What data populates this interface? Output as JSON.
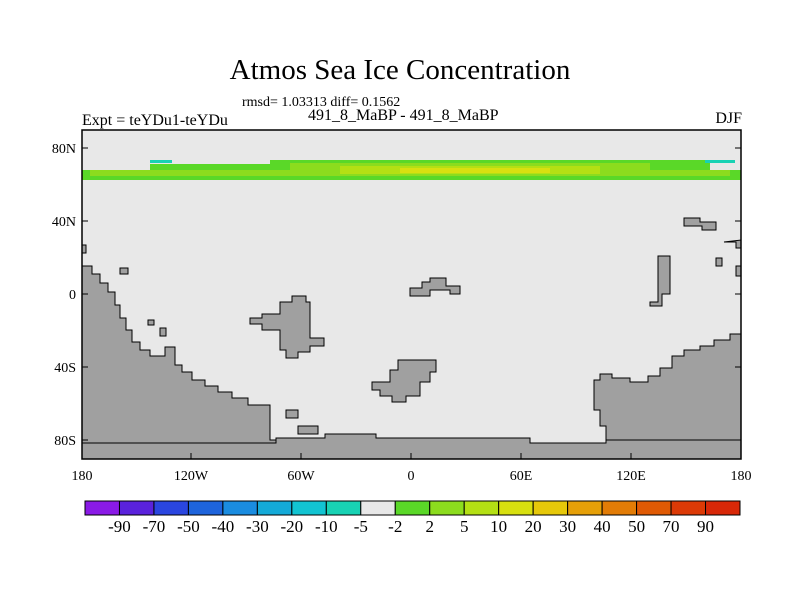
{
  "title": "Atmos Sea Ice Concentration",
  "stats": "rmsd= 1.03313  diff= 0.1562",
  "subtitle": "491_8_MaBP - 491_8_MaBP",
  "left_label": "Expt = teYDu1-teYDu",
  "right_label": "DJF",
  "axes": {
    "y_ticks": [
      "80N",
      "40N",
      "0",
      "40S",
      "80S"
    ],
    "x_ticks": [
      "180",
      "120W",
      "60W",
      "0",
      "60E",
      "120E",
      "180"
    ]
  },
  "colorbar": {
    "labels": [
      "-90",
      "-70",
      "-50",
      "-40",
      "-30",
      "-20",
      "-10",
      "-5",
      "-2",
      "2",
      "5",
      "10",
      "20",
      "30",
      "40",
      "50",
      "70",
      "90"
    ],
    "colors": [
      "#8a1ae6",
      "#5a22dc",
      "#2a46e0",
      "#1e64dc",
      "#1a8ce0",
      "#14aad8",
      "#12c4d2",
      "#18d2b4",
      "#e8e8e8",
      "#5ad828",
      "#8cdc1e",
      "#b4e014",
      "#d8e010",
      "#e6c80a",
      "#e6a008",
      "#e27c06",
      "#e05a04",
      "#dc3a06",
      "#d82808"
    ]
  },
  "colors": {
    "land": "#a0a0a0",
    "ocean_zero": "#e8e8e8"
  }
}
